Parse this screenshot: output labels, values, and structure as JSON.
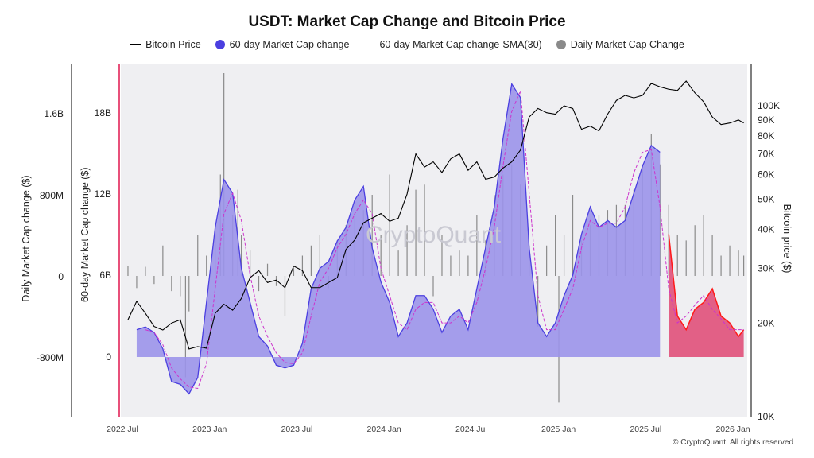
{
  "header": {
    "title": "USDT: Market Cap Change and Bitcoin Price"
  },
  "legend": {
    "items": [
      {
        "label": "Bitcoin Price",
        "kind": "line",
        "color": "#000000"
      },
      {
        "label": "60-day Market Cap change",
        "kind": "dot",
        "color": "#4b3fe0"
      },
      {
        "label": "60-day Market Cap change-SMA(30)",
        "kind": "dash",
        "color": "#cc33cc"
      },
      {
        "label": "Daily Market Cap Change",
        "kind": "dot",
        "color": "#8a8a8a"
      }
    ]
  },
  "axes": {
    "left_outer_title": "Daily Market Cap change ($)",
    "left_inner_title": "60-day Market Cap change ($)",
    "right_title": "Bitcoin price ($)",
    "left_outer_ticks": [
      "1.6B",
      "800M",
      "0",
      "-800M"
    ],
    "left_inner_ticks": [
      "18B",
      "12B",
      "6B",
      "0"
    ],
    "right_ticks": [
      "100K",
      "90K",
      "80K",
      "70K",
      "60K",
      "50K",
      "40K",
      "30K",
      "20K",
      "10K"
    ],
    "x_ticks": [
      "2022 Jul",
      "2023 Jan",
      "2023 Jul",
      "2024 Jan",
      "2024 Jul",
      "2025 Jan",
      "2025 Jul",
      "2026 Jan"
    ]
  },
  "watermark": "CryptoQuant",
  "copyright": "© CryptoQuant. All rights reserved",
  "colors": {
    "area_fill": "#9b93ea",
    "area_line": "#4b3fe0",
    "highlight_fill": "#e0507a",
    "highlight_line": "#ff1a1a",
    "sma": "#cc33cc",
    "btc": "#000000",
    "daily": "#8a8a8a",
    "plot_bg": "#efeff2",
    "left_marker": "#e8507a"
  },
  "chart_data": {
    "type": "line",
    "x_unit": "year (decimal)",
    "x_range": [
      2022.5,
      2026.1
    ],
    "btc_price": {
      "name": "Bitcoin Price",
      "scale": "log",
      "ylim": [
        10000,
        125000
      ],
      "x": [
        2022.55,
        2022.6,
        2022.65,
        2022.7,
        2022.75,
        2022.8,
        2022.85,
        2022.9,
        2022.95,
        2023.0,
        2023.05,
        2023.1,
        2023.15,
        2023.2,
        2023.25,
        2023.3,
        2023.35,
        2023.4,
        2023.45,
        2023.5,
        2023.55,
        2023.6,
        2023.65,
        2023.7,
        2023.75,
        2023.8,
        2023.85,
        2023.9,
        2023.95,
        2024.0,
        2024.05,
        2024.1,
        2024.15,
        2024.2,
        2024.25,
        2024.3,
        2024.35,
        2024.4,
        2024.45,
        2024.5,
        2024.55,
        2024.6,
        2024.65,
        2024.7,
        2024.75,
        2024.8,
        2024.85,
        2024.9,
        2024.95,
        2025.0,
        2025.05,
        2025.1,
        2025.15,
        2025.2,
        2025.25,
        2025.3,
        2025.35,
        2025.4,
        2025.45,
        2025.5,
        2025.55,
        2025.6,
        2025.65,
        2025.7,
        2025.75,
        2025.8,
        2025.85,
        2025.9,
        2025.95,
        2026.0,
        2026.05,
        2026.08
      ],
      "y": [
        20500,
        23500,
        21500,
        19500,
        19000,
        20000,
        20500,
        16500,
        16800,
        16600,
        21500,
        23000,
        22000,
        24000,
        28000,
        29500,
        27000,
        27500,
        26000,
        30500,
        29500,
        26000,
        26000,
        27000,
        28000,
        34500,
        37000,
        42000,
        43500,
        45000,
        42500,
        43500,
        52000,
        70000,
        63500,
        66000,
        61000,
        67500,
        70000,
        62000,
        66000,
        58000,
        59000,
        63000,
        66000,
        72000,
        92000,
        98000,
        95000,
        94000,
        100000,
        98000,
        84000,
        86000,
        83000,
        94000,
        104000,
        108000,
        106000,
        108000,
        118000,
        115000,
        113000,
        112000,
        120000,
        110000,
        103000,
        92000,
        87000,
        88000,
        90000,
        88000
      ]
    },
    "mcap_60d": {
      "name": "60-day Market Cap change",
      "unit": "USD",
      "ylim": [
        -3000000000,
        22000000000
      ],
      "x": [
        2022.6,
        2022.65,
        2022.7,
        2022.75,
        2022.8,
        2022.85,
        2022.9,
        2022.95,
        2023.0,
        2023.05,
        2023.1,
        2023.15,
        2023.2,
        2023.25,
        2023.3,
        2023.35,
        2023.4,
        2023.45,
        2023.5,
        2023.55,
        2023.6,
        2023.65,
        2023.7,
        2023.75,
        2023.8,
        2023.85,
        2023.9,
        2023.95,
        2024.0,
        2024.05,
        2024.1,
        2024.15,
        2024.2,
        2024.25,
        2024.3,
        2024.35,
        2024.4,
        2024.45,
        2024.5,
        2024.55,
        2024.6,
        2024.65,
        2024.7,
        2024.75,
        2024.8,
        2024.85,
        2024.9,
        2024.95,
        2025.0,
        2025.05,
        2025.1,
        2025.15,
        2025.2,
        2025.25,
        2025.3,
        2025.35,
        2025.4,
        2025.45,
        2025.5,
        2025.55,
        2025.6,
        2025.65,
        2025.7,
        2025.75,
        2025.8,
        2025.85,
        2025.9,
        2025.95,
        2026.0,
        2026.05,
        2026.08
      ],
      "y": [
        2000000000,
        2200000000,
        1800000000,
        600000000,
        -1800000000,
        -2000000000,
        -2700000000,
        -1500000000,
        4000000000,
        9500000000,
        13000000000,
        12000000000,
        6500000000,
        4000000000,
        1500000000,
        800000000,
        -600000000,
        -800000000,
        -600000000,
        1000000000,
        5000000000,
        6500000000,
        7000000000,
        8500000000,
        9500000000,
        11500000000,
        12500000000,
        8000000000,
        5500000000,
        4000000000,
        1500000000,
        2500000000,
        4500000000,
        4500000000,
        3500000000,
        1800000000,
        3000000000,
        3500000000,
        2000000000,
        5000000000,
        8000000000,
        11000000000,
        16000000000,
        20000000000,
        19000000000,
        8000000000,
        2500000000,
        1500000000,
        2500000000,
        4500000000,
        6000000000,
        9000000000,
        11000000000,
        9500000000,
        10000000000,
        9500000000,
        10000000000,
        12000000000,
        14000000000,
        15500000000,
        15000000000,
        9000000000,
        3000000000,
        2000000000,
        3500000000,
        4000000000,
        5000000000,
        3000000000,
        2500000000,
        1500000000,
        2000000000
      ]
    },
    "mcap_60d_sma30": {
      "name": "60-day Market Cap change-SMA(30)",
      "unit": "USD",
      "x": [
        2022.65,
        2022.7,
        2022.75,
        2022.8,
        2022.85,
        2022.9,
        2022.95,
        2023.0,
        2023.05,
        2023.1,
        2023.15,
        2023.2,
        2023.25,
        2023.3,
        2023.35,
        2023.4,
        2023.45,
        2023.5,
        2023.55,
        2023.6,
        2023.65,
        2023.7,
        2023.75,
        2023.8,
        2023.85,
        2023.9,
        2023.95,
        2024.0,
        2024.05,
        2024.1,
        2024.15,
        2024.2,
        2024.25,
        2024.3,
        2024.35,
        2024.4,
        2024.45,
        2024.5,
        2024.55,
        2024.6,
        2024.65,
        2024.7,
        2024.75,
        2024.8,
        2024.85,
        2024.9,
        2024.95,
        2025.0,
        2025.05,
        2025.1,
        2025.15,
        2025.2,
        2025.25,
        2025.3,
        2025.35,
        2025.4,
        2025.45,
        2025.5,
        2025.55,
        2025.6,
        2025.65,
        2025.7,
        2025.75,
        2025.8,
        2025.85,
        2025.9,
        2025.95,
        2026.0,
        2026.05,
        2026.08
      ],
      "y": [
        2000000000,
        1800000000,
        900000000,
        -800000000,
        -1600000000,
        -2200000000,
        -2300000000,
        -500000000,
        5000000000,
        10500000000,
        12000000000,
        10000000000,
        6000000000,
        3000000000,
        1500000000,
        300000000,
        -400000000,
        -500000000,
        300000000,
        3000000000,
        5500000000,
        6500000000,
        8000000000,
        9000000000,
        10500000000,
        11500000000,
        10500000000,
        6500000000,
        4500000000,
        2500000000,
        2000000000,
        3500000000,
        4000000000,
        4000000000,
        2500000000,
        2500000000,
        3000000000,
        2500000000,
        4000000000,
        6500000000,
        9500000000,
        14000000000,
        18000000000,
        19500000000,
        12000000000,
        4500000000,
        2000000000,
        2000000000,
        3500000000,
        5000000000,
        8000000000,
        10000000000,
        9500000000,
        9800000000,
        9800000000,
        11000000000,
        13500000000,
        15000000000,
        15200000000,
        11000000000,
        5000000000,
        2500000000,
        3000000000,
        3800000000,
        4500000000,
        3500000000,
        2800000000,
        2000000000,
        2000000000,
        2000000000
      ]
    },
    "daily_mcap_change": {
      "name": "Daily Market Cap Change",
      "unit": "USD",
      "ylim": [
        -1400000000,
        2150000000
      ],
      "x": [
        2022.55,
        2022.6,
        2022.65,
        2022.7,
        2022.75,
        2022.8,
        2022.85,
        2022.88,
        2022.9,
        2022.95,
        2023.0,
        2023.05,
        2023.08,
        2023.1,
        2023.15,
        2023.18,
        2023.2,
        2023.25,
        2023.3,
        2023.35,
        2023.4,
        2023.45,
        2023.5,
        2023.55,
        2023.6,
        2023.65,
        2023.7,
        2023.75,
        2023.8,
        2023.85,
        2023.9,
        2023.95,
        2024.0,
        2024.05,
        2024.1,
        2024.15,
        2024.2,
        2024.25,
        2024.3,
        2024.35,
        2024.4,
        2024.45,
        2024.5,
        2024.55,
        2024.6,
        2024.65,
        2024.7,
        2024.75,
        2024.8,
        2024.85,
        2024.9,
        2024.95,
        2025.0,
        2025.02,
        2025.05,
        2025.1,
        2025.15,
        2025.2,
        2025.25,
        2025.3,
        2025.35,
        2025.4,
        2025.45,
        2025.5,
        2025.55,
        2025.6,
        2025.65,
        2025.7,
        2025.75,
        2025.8,
        2025.85,
        2025.9,
        2025.95,
        2026.0,
        2026.05,
        2026.08
      ],
      "y": [
        100000000,
        -120000000,
        90000000,
        -80000000,
        300000000,
        -150000000,
        -200000000,
        -1000000000,
        -350000000,
        400000000,
        200000000,
        500000000,
        1000000000,
        2000000000,
        600000000,
        850000000,
        400000000,
        250000000,
        -150000000,
        120000000,
        -100000000,
        -400000000,
        80000000,
        200000000,
        300000000,
        400000000,
        -120000000,
        350000000,
        500000000,
        600000000,
        650000000,
        800000000,
        400000000,
        1000000000,
        250000000,
        500000000,
        850000000,
        900000000,
        -200000000,
        400000000,
        200000000,
        250000000,
        200000000,
        600000000,
        350000000,
        800000000,
        1000000000,
        1100000000,
        900000000,
        300000000,
        -500000000,
        300000000,
        600000000,
        -1250000000,
        400000000,
        800000000,
        350000000,
        500000000,
        600000000,
        650000000,
        700000000,
        700000000,
        850000000,
        1100000000,
        1400000000,
        1100000000,
        700000000,
        400000000,
        350000000,
        500000000,
        600000000,
        400000000,
        200000000,
        300000000,
        250000000,
        200000000
      ]
    },
    "highlight_range": [
      2025.64,
      2026.08
    ]
  }
}
